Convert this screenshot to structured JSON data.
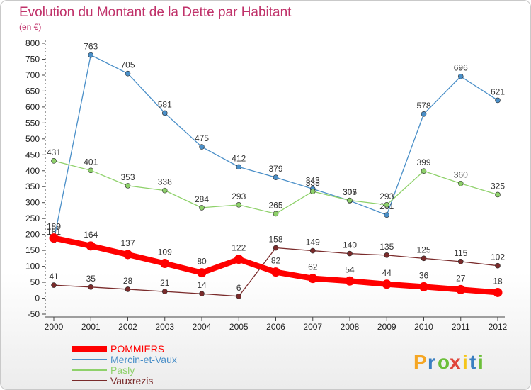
{
  "chart_data": {
    "type": "line",
    "title": "Evolution du Montant de la Dette par Habitant",
    "subtitle": "(en €)",
    "ylim": [
      -50,
      800
    ],
    "ytick_step": 50,
    "grid": false,
    "legend_position": "bottom-left",
    "x": [
      "2000",
      "2001",
      "2002",
      "2003",
      "2004",
      "2005",
      "2006",
      "2007",
      "2008",
      "2009",
      "2010",
      "2011",
      "2012"
    ],
    "series": [
      {
        "name": "Mercin-et-Vaux",
        "color": "#4a8fc8",
        "values": [
          181,
          763,
          705,
          581,
          475,
          412,
          379,
          343,
          306,
          261,
          578,
          696,
          621
        ],
        "labels": [
          "181",
          "763",
          "705",
          "581",
          "475",
          "412",
          "379",
          "343",
          "306",
          "261",
          "578",
          "696",
          "621"
        ]
      },
      {
        "name": "Pasly",
        "color": "#8ed16a",
        "values": [
          431,
          401,
          353,
          338,
          284,
          293,
          265,
          335,
          307,
          293,
          399,
          360,
          325
        ],
        "labels": [
          "431",
          "401",
          "353",
          "338",
          "284",
          "293",
          "265",
          "335",
          "307",
          "293",
          "399",
          "360",
          "325"
        ]
      },
      {
        "name": "Vauxrezis",
        "color": "#7a2b2b",
        "values": [
          41,
          35,
          28,
          21,
          14,
          6,
          158,
          149,
          140,
          135,
          125,
          115,
          102
        ],
        "labels": [
          "41",
          "35",
          "28",
          "21",
          "14",
          "6",
          "158",
          "149",
          "140",
          "135",
          "125",
          "115",
          "102"
        ]
      },
      {
        "name": "POMMIERS",
        "color": "#ff0000",
        "values": [
          189,
          164,
          137,
          109,
          80,
          122,
          82,
          62,
          54,
          44,
          36,
          27,
          18
        ],
        "labels": [
          "189",
          "164",
          "137",
          "109",
          "80",
          "122",
          "82",
          "62",
          "54",
          "44",
          "36",
          "27",
          "18"
        ]
      }
    ],
    "legend": [
      {
        "name": "POMMIERS",
        "color": "#ff0000"
      },
      {
        "name": "Mercin-et-Vaux",
        "color": "#4a8fc8"
      },
      {
        "name": "Pasly",
        "color": "#8ed16a"
      },
      {
        "name": "Vauxrezis",
        "color": "#7a2b2b"
      }
    ]
  },
  "brand": {
    "letters": [
      "P",
      "r",
      "o",
      "x",
      "i",
      "t",
      "i"
    ],
    "colors": [
      "#f5a623",
      "#3a7fc1",
      "#6cbf3a",
      "#e0453a",
      "#f5c518",
      "#3a7fc1",
      "#6cbf3a"
    ]
  },
  "colors": {
    "title": "#c0326a",
    "axis": "#444444",
    "tick_text": "#222222",
    "label_text": "#333333"
  }
}
